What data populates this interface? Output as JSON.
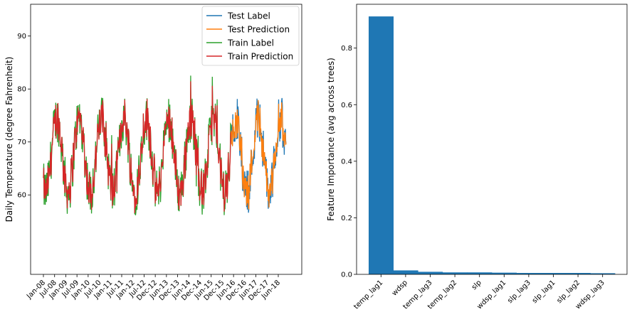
{
  "chart_data": [
    {
      "type": "line",
      "ylabel": "Daily Temperature (degree Fahrenheit)",
      "xlabel": "",
      "x_tick_labels": [
        "Jan-08",
        "Jul-08",
        "Jan-09",
        "Jul-09",
        "Jan-10",
        "Jul-10",
        "Jan-11",
        "Jul-11",
        "Jan-12",
        "Jul-12",
        "Dec-12",
        "Jun-13",
        "Dec-13",
        "Jun-14",
        "Dec-14",
        "Jun-15",
        "Dec-15",
        "Jun-16",
        "Dec-16",
        "Jun-17",
        "Dec-17",
        "Jun-18"
      ],
      "y_ticks": [
        60,
        70,
        80,
        90
      ],
      "ylim": [
        45,
        96
      ],
      "grid": false,
      "legend_position": "top-right",
      "series": [
        {
          "name": "Test Label",
          "color": "#1f77b4",
          "x_range": [
            "Jun-16",
            "Sep-18"
          ],
          "approx_range": [
            56,
            80
          ]
        },
        {
          "name": "Test Prediction",
          "color": "#ff7f0e",
          "x_range": [
            "Jun-16",
            "Sep-18"
          ],
          "approx_range": [
            58,
            81
          ]
        },
        {
          "name": "Train Label",
          "color": "#2ca02c",
          "x_range": [
            "Jan-08",
            "Jun-16"
          ],
          "approx_range": [
            52,
            88
          ]
        },
        {
          "name": "Train Prediction",
          "color": "#d62728",
          "x_range": [
            "Jan-08",
            "Jun-16"
          ],
          "approx_range": [
            55,
            87
          ]
        }
      ]
    },
    {
      "type": "bar",
      "ylabel": "Feature Importance (avg across trees)",
      "xlabel": "",
      "categories": [
        "temp_lag1",
        "wdsp",
        "temp_lag3",
        "temp_lag2",
        "slp",
        "wdsp_lag1",
        "slp_lag3",
        "slp_lag1",
        "slp_lag2",
        "wdsp_lag3"
      ],
      "values": [
        0.912,
        0.014,
        0.009,
        0.007,
        0.007,
        0.006,
        0.005,
        0.005,
        0.005,
        0.004
      ],
      "y_ticks": [
        0.0,
        0.2,
        0.4,
        0.6,
        0.8
      ],
      "ylim": [
        0,
        0.955
      ],
      "color": "#1f77b4",
      "grid": false
    }
  ]
}
